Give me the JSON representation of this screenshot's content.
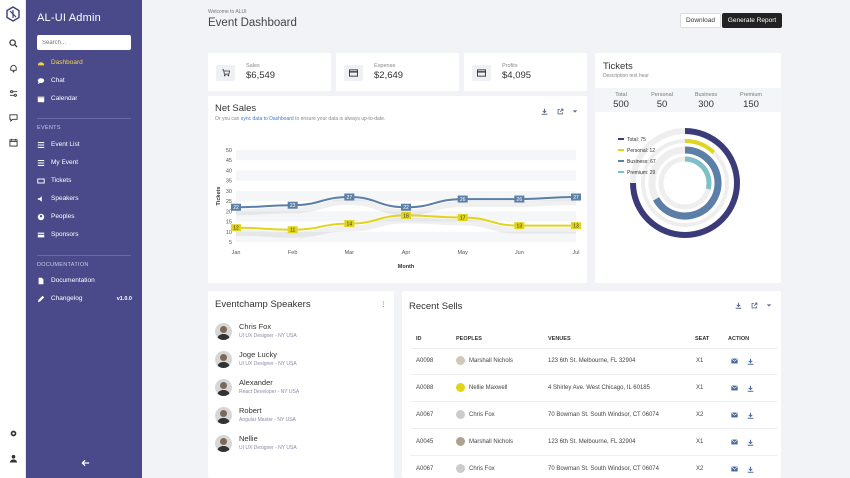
{
  "app": {
    "title": "AL-UI Admin"
  },
  "search": {
    "placeholder": "Search..."
  },
  "nav": {
    "main": [
      {
        "label": "Dashboard",
        "icon": "dashboard-icon"
      },
      {
        "label": "Chat",
        "icon": "chat-icon"
      },
      {
        "label": "Calendar",
        "icon": "calendar-icon"
      }
    ],
    "events_heading": "EVENTS",
    "events": [
      {
        "label": "Event List",
        "icon": "list-icon"
      },
      {
        "label": "My Event",
        "icon": "list-icon"
      },
      {
        "label": "Tickets",
        "icon": "ticket-icon"
      },
      {
        "label": "Speakers",
        "icon": "speaker-icon"
      },
      {
        "label": "Peoples",
        "icon": "people-icon"
      },
      {
        "label": "Sponsors",
        "icon": "card-icon"
      }
    ],
    "docs_heading": "DOCUMENTATION",
    "docs": [
      {
        "label": "Documentation",
        "icon": "doc-icon"
      },
      {
        "label": "Changelog",
        "icon": "pencil-icon",
        "badge": "v1.0.0"
      }
    ]
  },
  "header": {
    "welcome": "Welcome to ALUI",
    "title": "Event Dashboard",
    "download_label": "Download",
    "report_label": "Generate Report"
  },
  "stats": [
    {
      "label": "Sales",
      "value": "$6,549"
    },
    {
      "label": "Expense",
      "value": "$2,649"
    },
    {
      "label": "Profits",
      "value": "$4,095"
    }
  ],
  "net_sales": {
    "title": "Net Sales",
    "sub_prefix": "Or you can ",
    "sub_link": "sync data to Dashboard",
    "sub_suffix": " to ensure your data is always up-to-date."
  },
  "chart_data": {
    "type": "line",
    "categories": [
      "Jan",
      "Feb",
      "Mar",
      "Apr",
      "May",
      "Jun",
      "Jul"
    ],
    "series": [
      {
        "values": [
          22,
          23,
          27,
          22,
          26,
          26,
          27
        ],
        "color": "#5b7fa6"
      },
      {
        "values": [
          12,
          11,
          14,
          18,
          17,
          13,
          13
        ],
        "color": "#e0d41c"
      }
    ],
    "xlabel": "Month",
    "ylabel": "Tickets",
    "yticks": [
      5,
      10,
      15,
      20,
      25,
      30,
      35,
      40,
      45,
      50
    ],
    "ylim": [
      5,
      50
    ],
    "grid": true
  },
  "tickets": {
    "title": "Tickets",
    "subtitle": "Description text hear",
    "columns": [
      {
        "label": "Total",
        "value": "500"
      },
      {
        "label": "Personal",
        "value": "50"
      },
      {
        "label": "Business",
        "value": "300"
      },
      {
        "label": "Premium",
        "value": "150"
      }
    ],
    "legend": [
      {
        "label": "Total: 75",
        "value": 75,
        "color": "#3b3b7a"
      },
      {
        "label": "Personal: 12",
        "value": 12,
        "color": "#e0d41c"
      },
      {
        "label": "Business: 67",
        "value": 67,
        "color": "#5b7fa6"
      },
      {
        "label": "Premium: 29",
        "value": 29,
        "color": "#7fbfc7"
      }
    ]
  },
  "speakers": {
    "title": "Eventchamp Speakers",
    "items": [
      {
        "name": "Chris Fox",
        "role": "UI UX Designer - NY USA"
      },
      {
        "name": "Joge Lucky",
        "role": "UI UX Designer - NY USA"
      },
      {
        "name": "Alexander",
        "role": "React Developer - NY USA"
      },
      {
        "name": "Robert",
        "role": "Angular Master - NY USA"
      },
      {
        "name": "Nellie",
        "role": "UI UX Designer - NY USA"
      }
    ]
  },
  "sells": {
    "title": "Recent Sells",
    "headers": [
      "ID",
      "PEOPLES",
      "VENUES",
      "SEAT",
      "ACTION"
    ],
    "rows": [
      {
        "id": "A0098",
        "people": "Marshall Nichols",
        "venue": "123 6th St. Melbourne, FL 32904",
        "seat": "X1"
      },
      {
        "id": "A0088",
        "people": "Nellie Maxwell",
        "venue": "4 Shirley Ave. West Chicago, IL 60185",
        "seat": "X1"
      },
      {
        "id": "A0067",
        "people": "Chris Fox",
        "venue": "70 Bowman St. South Windsor, CT 06074",
        "seat": "X2"
      },
      {
        "id": "A0045",
        "people": "Marshall Nichols",
        "venue": "123 6th St. Melbourne, FL 32904",
        "seat": "X1"
      },
      {
        "id": "A0067",
        "people": "Chris Fox",
        "venue": "70 Bowman St. South Windsor, CT 06074",
        "seat": "X2"
      }
    ]
  }
}
